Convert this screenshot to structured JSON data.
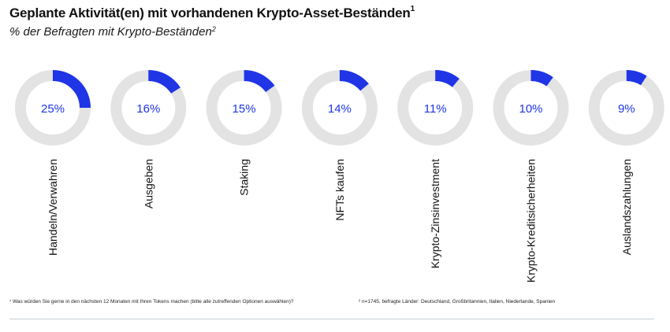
{
  "title": "Geplante Aktivität(en) mit vorhandenen Krypto-Asset-Beständen",
  "title_marker": "1",
  "subtitle": "% der Befragten mit Krypto-Beständen",
  "subtitle_marker": "2",
  "colors": {
    "accent": "#1f35e6",
    "ring_background": "#e3e3e3",
    "value_text": "#1f35e6",
    "rule": "#c9cfd3"
  },
  "chart_data": {
    "type": "donut",
    "title": "Geplante Aktivität(en) mit vorhandenen Krypto-Asset-Beständen",
    "subtitle": "% der Befragten mit Krypto-Beständen",
    "unit": "%",
    "categories": [
      "Handeln/Verwahren",
      "Ausgeben",
      "Staking",
      "NFTs kaufen",
      "Krypto-Zinsinvestment",
      "Krypto-Kreditsicherheiten",
      "Auslandszahlungen"
    ],
    "values": [
      25,
      16,
      15,
      14,
      11,
      10,
      9
    ],
    "value_labels": [
      "25%",
      "16%",
      "15%",
      "14%",
      "11%",
      "10%",
      "9%"
    ],
    "max": 100
  },
  "footnotes": {
    "note1": "¹ Was würden Sie gerne in den nächsten 12 Monaten mit Ihren Tokens machen (bitte alle zutreffenden Optionen auswählen)?",
    "note2": "² n=1745, befragte Länder: Deutschland, Großbritannien, Italien, Niederlande, Spanien"
  }
}
